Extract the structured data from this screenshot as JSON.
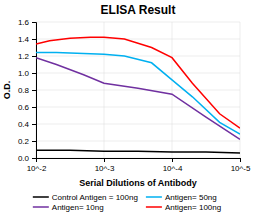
{
  "chart_data": {
    "type": "line",
    "title": "ELISA Result",
    "xlabel": "Serial Dilutions of Antibody",
    "ylabel": "O.D.",
    "log": "x",
    "grid": true,
    "legend": "bottom",
    "xlim": [
      0.01,
      1e-05
    ],
    "xticks": [
      {
        "value": 0.01,
        "label": "10^-2"
      },
      {
        "value": 0.001,
        "label": "10^-3"
      },
      {
        "value": 0.0001,
        "label": "10^-4"
      },
      {
        "value": 1e-05,
        "label": "10^-5"
      }
    ],
    "ylim": [
      0,
      1.6
    ],
    "yticks": [
      {
        "value": 0,
        "label": "0.0"
      },
      0.2,
      0.4,
      0.6,
      0.8,
      {
        "value": 1.0,
        "label": "1.0"
      },
      1.2,
      1.4,
      1.6
    ],
    "series": [
      {
        "name": "Control Antigen = 100ng",
        "color": "#000000",
        "x": [
          0.01,
          0.00630957344480193,
          0.0031622776601683794,
          0.001,
          0.00031622776601683794,
          0.0001,
          3.1622776601683795e-05,
          1e-05
        ],
        "values": [
          0.09,
          0.09,
          0.09,
          0.08,
          0.08,
          0.07,
          0.07,
          0.06
        ]
      },
      {
        "name": "Antigen= 10ng",
        "color": "#7030A0",
        "x": [
          0.01,
          0.005011872336272722,
          0.001995262314968879,
          0.001,
          0.00031622776601683794,
          0.0001,
          3.1622776601683795e-05,
          1e-05
        ],
        "values": [
          1.18,
          1.1,
          0.98,
          0.88,
          0.82,
          0.75,
          0.48,
          0.22
        ]
      },
      {
        "name": "Antigen= 50ng",
        "color": "#00B0F0",
        "x": [
          0.01,
          0.005011872336272722,
          0.001995262314968879,
          0.001,
          0.000501187233627272,
          0.00019952623149688788,
          0.0001,
          5.01187233627272e-05,
          1.9952623149688786e-05,
          1e-05
        ],
        "values": [
          1.24,
          1.24,
          1.23,
          1.22,
          1.2,
          1.12,
          0.92,
          0.72,
          0.42,
          0.28
        ]
      },
      {
        "name": "Antigen= 100ng",
        "color": "#FF0000",
        "x": [
          0.01,
          0.00630957344480193,
          0.0031622776601683794,
          0.001584893192461114,
          0.001,
          0.000501187233627272,
          0.00019952623149688788,
          0.0001,
          5.01187233627272e-05,
          1.9952623149688786e-05,
          1e-05
        ],
        "values": [
          1.34,
          1.38,
          1.41,
          1.42,
          1.42,
          1.4,
          1.3,
          1.18,
          0.88,
          0.52,
          0.35
        ]
      }
    ]
  }
}
